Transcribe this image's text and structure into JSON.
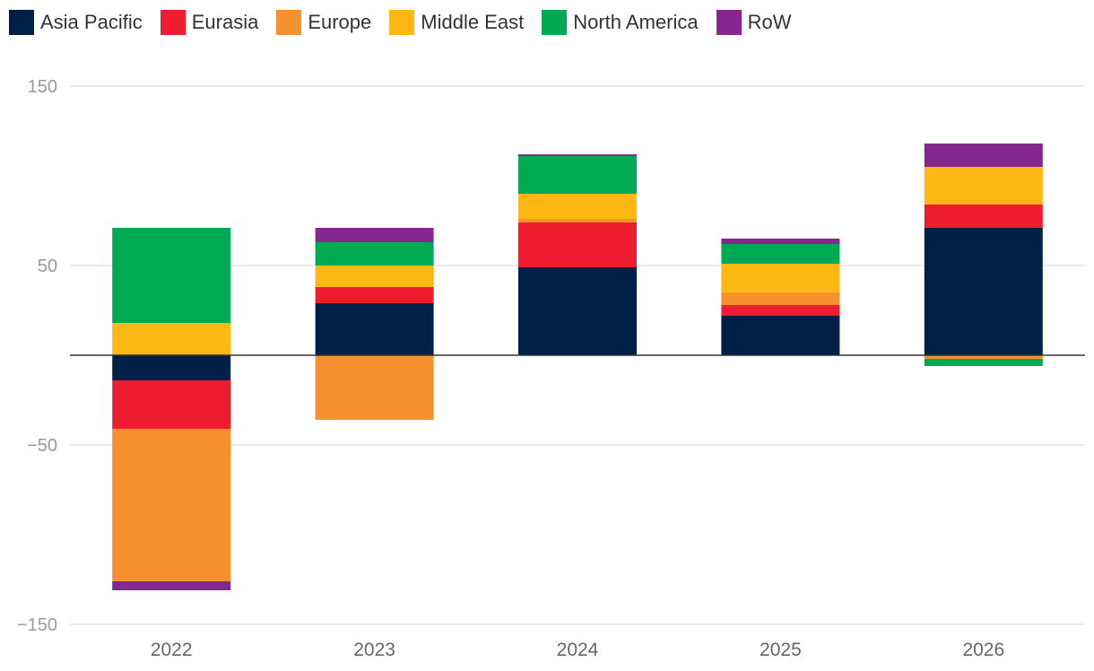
{
  "chart_data": {
    "type": "bar",
    "stacked": true,
    "categories": [
      "2022",
      "2023",
      "2024",
      "2025",
      "2026"
    ],
    "series": [
      {
        "name": "Asia Pacific",
        "color": "#002147",
        "values": [
          -14,
          29,
          49,
          22,
          71
        ]
      },
      {
        "name": "Eurasia",
        "color": "#ED1C2E",
        "values": [
          -27,
          9,
          25,
          6,
          13
        ]
      },
      {
        "name": "Europe",
        "color": "#F7902F",
        "values": [
          -85,
          -36,
          2,
          7,
          -2
        ]
      },
      {
        "name": "Middle East",
        "color": "#FDB813",
        "values": [
          18,
          12,
          14,
          16,
          21
        ]
      },
      {
        "name": "North America",
        "color": "#00AA52",
        "values": [
          53,
          13,
          21,
          11,
          -4
        ]
      },
      {
        "name": "RoW",
        "color": "#84288E",
        "values": [
          -5,
          8,
          1,
          3,
          13
        ]
      }
    ],
    "y_ticks": [
      "150",
      "50",
      "−50",
      "−150"
    ],
    "y_tick_values": [
      150,
      50,
      -50,
      -150
    ],
    "ylim": [
      -150,
      150
    ],
    "legend_position": "top-left",
    "grid": true
  }
}
